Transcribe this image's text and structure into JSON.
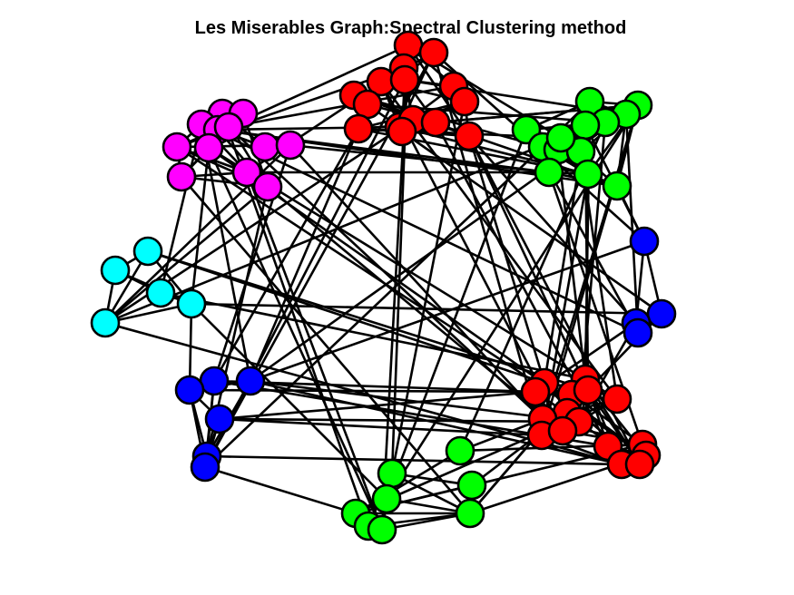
{
  "title": "Les Miserables Graph:Spectral Clustering method",
  "colors": {
    "red": "#ff0000",
    "green": "#00ff00",
    "blue": "#0000ff",
    "magenta": "#ff00ff",
    "cyan": "#00ffff",
    "edge": "#000000",
    "node_outline": "#000000"
  },
  "clusters": [
    {
      "name": "red-top",
      "color": "red"
    },
    {
      "name": "green-top-right",
      "color": "green"
    },
    {
      "name": "magenta-top-left",
      "color": "magenta"
    },
    {
      "name": "cyan-left",
      "color": "cyan"
    },
    {
      "name": "blue-right",
      "color": "blue"
    },
    {
      "name": "blue-left",
      "color": "blue"
    },
    {
      "name": "red-bottom-right",
      "color": "red"
    },
    {
      "name": "green-bottom",
      "color": "green"
    }
  ]
}
